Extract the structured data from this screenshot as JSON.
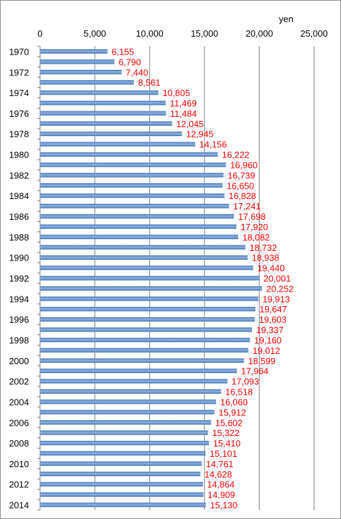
{
  "chart_data": {
    "type": "bar",
    "orientation": "horizontal",
    "unit_label": "yen",
    "x_axis_position": "top",
    "xlim": [
      0,
      25000
    ],
    "x_ticks": [
      0,
      5000,
      10000,
      15000,
      20000,
      25000
    ],
    "x_tick_labels": [
      "0",
      "5,000",
      "10,000",
      "15,000",
      "20,000",
      "25,000"
    ],
    "gridlines": true,
    "legend": false,
    "categories": [
      "1970",
      "1971",
      "1972",
      "1973",
      "1974",
      "1975",
      "1976",
      "1977",
      "1978",
      "1979",
      "1980",
      "1981",
      "1982",
      "1983",
      "1984",
      "1985",
      "1986",
      "1987",
      "1988",
      "1989",
      "1990",
      "1991",
      "1992",
      "1993",
      "1994",
      "1995",
      "1996",
      "1997",
      "1998",
      "1999",
      "2000",
      "2001",
      "2002",
      "2003",
      "2004",
      "2005",
      "2006",
      "2007",
      "2008",
      "2009",
      "2010",
      "2011",
      "2012",
      "2013",
      "2014"
    ],
    "category_labels_shown": [
      "1970",
      "",
      "1972",
      "",
      "1974",
      "",
      "1976",
      "",
      "1978",
      "",
      "1980",
      "",
      "1982",
      "",
      "1984",
      "",
      "1986",
      "",
      "1988",
      "",
      "1990",
      "",
      "1992",
      "",
      "1994",
      "",
      "1996",
      "",
      "1998",
      "",
      "2000",
      "",
      "2002",
      "",
      "2004",
      "",
      "2006",
      "",
      "2008",
      "",
      "2010",
      "",
      "2012",
      "",
      "2014"
    ],
    "values": [
      6155,
      6790,
      7440,
      8561,
      10805,
      11469,
      11484,
      12045,
      12945,
      14156,
      16222,
      16960,
      16739,
      16650,
      16828,
      17241,
      17698,
      17920,
      18082,
      18732,
      18938,
      19440,
      20001,
      20252,
      19913,
      19647,
      19603,
      19337,
      19160,
      19012,
      18599,
      17964,
      17093,
      16518,
      16060,
      15912,
      15602,
      15322,
      15410,
      15101,
      14761,
      14628,
      14864,
      14909,
      15130
    ],
    "value_labels": [
      "6,155",
      "6,790",
      "7,440",
      "8,561",
      "10,805",
      "11,469",
      "11,484",
      "12,045",
      "12,945",
      "14,156",
      "16,222",
      "16,960",
      "16,739",
      "16,650",
      "16,828",
      "17,241",
      "17,698",
      "17,920",
      "18,082",
      "18,732",
      "18,938",
      "19,440",
      "20,001",
      "20,252",
      "19,913",
      "19,647",
      "19,603",
      "19,337",
      "19,160",
      "19,012",
      "18,599",
      "17,964",
      "17,093",
      "16,518",
      "16,060",
      "15,912",
      "15,602",
      "15,322",
      "15,410",
      "15,101",
      "14,761",
      "14,628",
      "14,864",
      "14,909",
      "15,130"
    ],
    "colors": {
      "bar": "#4a78b8",
      "bar_light": "#8fb1df",
      "value_label": "#ff0000",
      "gridline": "#808080",
      "axis": "#808080"
    }
  }
}
